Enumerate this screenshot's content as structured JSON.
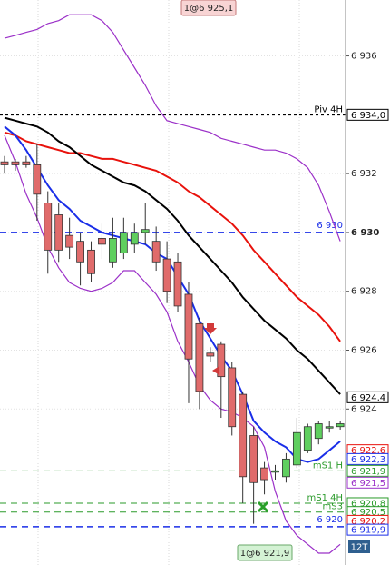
{
  "chart_data": {
    "type": "candlestick",
    "ylim": [
      6918.7,
      6937.9
    ],
    "yticks": [
      {
        "value": 6924,
        "label": "6 924"
      },
      {
        "value": 6926,
        "label": "6 926"
      },
      {
        "value": 6928,
        "label": "6 928"
      },
      {
        "value": 6930,
        "label": "6 930"
      },
      {
        "value": 6932,
        "label": "6 932"
      },
      {
        "value": 6936,
        "label": "6 936"
      }
    ],
    "grid": true,
    "up_color": "#5fcf5f",
    "down_color": "#e06b6b",
    "candles": {
      "open": [
        6932.4,
        6932.4,
        6932.4,
        6932.3,
        6931.0,
        6930.6,
        6929.9,
        6929.7,
        6929.4,
        6929.8,
        6929.0,
        6929.3,
        6929.6,
        6930.0,
        6929.7,
        6929.1,
        6929.0,
        6927.9,
        6926.9,
        6925.9,
        6926.2,
        6925.4,
        6924.5,
        6923.1,
        6922.0,
        6921.9,
        6921.7,
        6922.1,
        6922.6,
        6923.0,
        6923.4,
        6923.4
      ],
      "high": [
        6932.6,
        6932.5,
        6932.6,
        6933.0,
        6931.4,
        6931.0,
        6930.5,
        6930.0,
        6929.7,
        6930.3,
        6930.5,
        6930.5,
        6930.3,
        6931.0,
        6930.2,
        6929.7,
        6929.3,
        6928.3,
        6927.1,
        6926.1,
        6926.3,
        6925.6,
        6924.6,
        6923.4,
        6922.2,
        6922.1,
        6922.5,
        6923.7,
        6923.5,
        6923.6,
        6923.6,
        6923.6
      ],
      "low": [
        6932.0,
        6932.1,
        6932.2,
        6930.4,
        6928.6,
        6929.0,
        6929.1,
        6928.2,
        6928.3,
        6929.1,
        6928.8,
        6929.1,
        6929.3,
        6929.6,
        6928.7,
        6927.6,
        6927.3,
        6924.2,
        6924.0,
        6925.6,
        6923.7,
        6923.1,
        6920.8,
        6920.1,
        6921.1,
        6921.6,
        6921.5,
        6922.0,
        6922.5,
        6922.8,
        6923.2,
        6923.3
      ],
      "close": [
        6932.3,
        6932.3,
        6932.3,
        6931.3,
        6929.4,
        6929.4,
        6929.5,
        6929.0,
        6928.6,
        6929.6,
        6929.8,
        6930.0,
        6930.0,
        6930.1,
        6929.0,
        6928.0,
        6927.5,
        6925.7,
        6924.6,
        6925.8,
        6925.1,
        6923.4,
        6921.7,
        6921.5,
        6921.6,
        6921.9,
        6922.3,
        6923.2,
        6923.4,
        6923.5,
        6923.4,
        6923.5
      ]
    },
    "lines": [
      {
        "color": "#9b30c8",
        "values": [
          6936.6,
          6936.7,
          6936.8,
          6936.9,
          6937.1,
          6937.2,
          6937.4,
          6937.4,
          6937.4,
          6937.2,
          6936.8,
          6936.2,
          6935.6,
          6935.0,
          6934.3,
          6933.8,
          6933.7,
          6933.6,
          6933.5,
          6933.4,
          6933.2,
          6933.1,
          6933.0,
          6932.9,
          6932.8,
          6932.8,
          6932.7,
          6932.5,
          6932.2,
          6931.6,
          6930.7,
          6929.7
        ]
      },
      {
        "color": "#9b30c8",
        "values": [
          6933.3,
          6932.4,
          6931.3,
          6930.5,
          6929.5,
          6928.8,
          6928.3,
          6928.1,
          6928.0,
          6928.1,
          6928.3,
          6928.7,
          6928.7,
          6928.3,
          6927.9,
          6927.3,
          6926.3,
          6925.6,
          6924.8,
          6924.3,
          6924.0,
          6923.9,
          6923.7,
          6923.4,
          6922.7,
          6921.2,
          6920.2,
          6919.7,
          6919.4,
          6919.1,
          6919.1,
          6919.4
        ]
      },
      {
        "color": "#e8120c",
        "values": [
          6933.4,
          6933.3,
          6933.1,
          6933.0,
          6932.9,
          6932.8,
          6932.7,
          6932.7,
          6932.6,
          6932.5,
          6932.5,
          6932.4,
          6932.3,
          6932.2,
          6932.1,
          6931.9,
          6931.7,
          6931.4,
          6931.2,
          6930.9,
          6930.6,
          6930.3,
          6929.9,
          6929.4,
          6929.0,
          6928.6,
          6928.2,
          6927.8,
          6927.5,
          6927.2,
          6926.8,
          6926.3
        ]
      },
      {
        "color": "#000000",
        "values": [
          6933.9,
          6933.8,
          6933.7,
          6933.6,
          6933.4,
          6933.1,
          6932.9,
          6932.6,
          6932.3,
          6932.1,
          6931.9,
          6931.7,
          6931.6,
          6931.4,
          6931.1,
          6930.8,
          6930.4,
          6929.9,
          6929.5,
          6929.1,
          6928.7,
          6928.3,
          6927.8,
          6927.4,
          6927.0,
          6926.7,
          6926.4,
          6926.0,
          6925.7,
          6925.3,
          6924.9,
          6924.5
        ]
      },
      {
        "color": "#1a2ee8",
        "values": [
          6933.6,
          6933.3,
          6932.8,
          6932.2,
          6931.6,
          6931.1,
          6930.8,
          6930.4,
          6930.2,
          6930.0,
          6929.9,
          6929.8,
          6929.7,
          6929.6,
          6929.3,
          6929.1,
          6928.5,
          6927.9,
          6927.0,
          6926.4,
          6925.8,
          6925.3,
          6924.5,
          6923.6,
          6923.2,
          6922.9,
          6922.7,
          6922.3,
          6922.2,
          6922.3,
          6922.6,
          6922.9
        ]
      }
    ],
    "levels": [
      {
        "value": 6934.0,
        "label": "Piv 4H",
        "color": "#000000",
        "style": "dotted"
      },
      {
        "value": 6930.0,
        "label": "6 930",
        "color": "#1a2ee8",
        "style": "dashed"
      },
      {
        "value": 6921.9,
        "label": "mS1 H",
        "color": "#2a9a2a",
        "style": "dashed"
      },
      {
        "value": 6920.8,
        "label": "mS1 4H",
        "color": "#2a9a2a",
        "style": "dashed"
      },
      {
        "value": 6920.5,
        "label": "mS3",
        "color": "#2a9a2a",
        "style": "dashed"
      },
      {
        "value": 6920.0,
        "label": "6 920",
        "color": "#1a2ee8",
        "style": "dashed"
      }
    ],
    "price_markers": [
      {
        "value": 6934.0,
        "label": "6 934,0",
        "color": "#000000"
      },
      {
        "value": 6924.4,
        "label": "6 924,4",
        "color": "#000000"
      },
      {
        "value": 6922.6,
        "label": "6 922,6",
        "color": "#e8120c"
      },
      {
        "value": 6922.3,
        "label": "6 922,3",
        "color": "#1a2ee8"
      },
      {
        "value": 6921.9,
        "label": "6 921,9",
        "color": "#2a9a2a"
      },
      {
        "value": 6921.5,
        "label": "6 921,5",
        "color": "#9b30c8"
      },
      {
        "value": 6920.8,
        "label": "6 920,8",
        "color": "#2a9a2a"
      },
      {
        "value": 6920.5,
        "label": "6 920,5",
        "color": "#2a9a2a"
      },
      {
        "value": 6920.2,
        "label": "6 920,2",
        "color": "#e8120c"
      },
      {
        "value": 6919.9,
        "label": "6 919,9",
        "color": "#1a2ee8"
      }
    ],
    "order_labels": [
      "1@6 925,1",
      "1@6 921,9"
    ],
    "timeframe_label": "12T"
  }
}
